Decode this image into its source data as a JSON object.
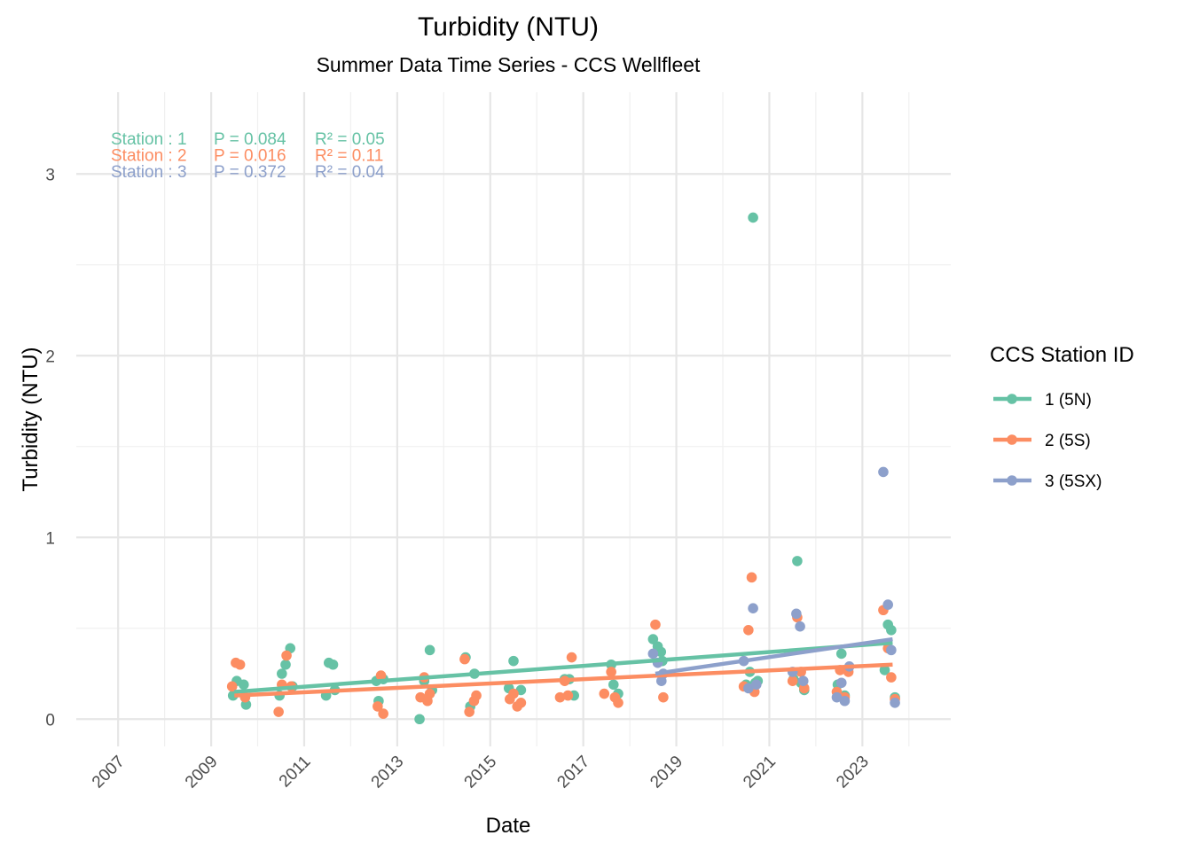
{
  "chart_data": {
    "type": "scatter",
    "title": "Turbidity (NTU)",
    "subtitle": "Summer Data Time Series - CCS Wellfleet",
    "xlabel": "Date",
    "ylabel": "Turbidity (NTU)",
    "xlim": [
      2006.1,
      2024.9
    ],
    "ylim": [
      -0.15,
      3.45
    ],
    "x_ticks": [
      "2007",
      "2009",
      "2011",
      "2013",
      "2015",
      "2017",
      "2019",
      "2021",
      "2023"
    ],
    "y_ticks": [
      "0",
      "1",
      "2",
      "3"
    ],
    "grid": true,
    "legend": {
      "title": "CCS Station ID",
      "position": "right",
      "entries": [
        "1 (5N)",
        "2 (5S)",
        "3 (5SX)"
      ]
    },
    "annotations": [
      {
        "station": "Station : 1",
        "p": "P = 0.084",
        "r2": "R² = 0.05",
        "color": "#66c2a5"
      },
      {
        "station": "Station : 2",
        "p": "P = 0.016",
        "r2": "R² = 0.11",
        "color": "#fc8d62"
      },
      {
        "station": "Station : 3",
        "p": "P = 0.372",
        "r2": "R² = 0.04",
        "color": "#8da0cb"
      }
    ],
    "series": [
      {
        "name": "1 (5N)",
        "color": "#66c2a5",
        "trend": [
          [
            2009.5,
            0.15
          ],
          [
            2023.65,
            0.42
          ]
        ],
        "points": [
          [
            2009.47,
            0.13
          ],
          [
            2009.55,
            0.21
          ],
          [
            2009.7,
            0.19
          ],
          [
            2009.75,
            0.08
          ],
          [
            2010.47,
            0.13
          ],
          [
            2010.52,
            0.25
          ],
          [
            2010.6,
            0.3
          ],
          [
            2010.7,
            0.39
          ],
          [
            2010.75,
            0.18
          ],
          [
            2011.47,
            0.13
          ],
          [
            2011.53,
            0.31
          ],
          [
            2011.62,
            0.3
          ],
          [
            2011.66,
            0.16
          ],
          [
            2012.55,
            0.21
          ],
          [
            2012.6,
            0.1
          ],
          [
            2012.7,
            0.22
          ],
          [
            2013.48,
            0.0
          ],
          [
            2013.58,
            0.21
          ],
          [
            2013.7,
            0.38
          ],
          [
            2013.75,
            0.16
          ],
          [
            2014.47,
            0.34
          ],
          [
            2014.57,
            0.07
          ],
          [
            2014.66,
            0.25
          ],
          [
            2015.4,
            0.17
          ],
          [
            2015.5,
            0.32
          ],
          [
            2015.66,
            0.16
          ],
          [
            2016.6,
            0.22
          ],
          [
            2016.7,
            0.22
          ],
          [
            2016.8,
            0.13
          ],
          [
            2017.6,
            0.3
          ],
          [
            2017.65,
            0.19
          ],
          [
            2017.75,
            0.14
          ],
          [
            2018.5,
            0.44
          ],
          [
            2018.6,
            0.4
          ],
          [
            2018.67,
            0.37
          ],
          [
            2018.7,
            0.32
          ],
          [
            2020.5,
            0.19
          ],
          [
            2020.58,
            0.26
          ],
          [
            2020.65,
            2.76
          ],
          [
            2020.7,
            0.2
          ],
          [
            2020.75,
            0.21
          ],
          [
            2021.52,
            0.22
          ],
          [
            2021.6,
            0.87
          ],
          [
            2021.68,
            0.2
          ],
          [
            2021.75,
            0.16
          ],
          [
            2022.47,
            0.19
          ],
          [
            2022.55,
            0.36
          ],
          [
            2022.62,
            0.13
          ],
          [
            2023.48,
            0.27
          ],
          [
            2023.55,
            0.52
          ],
          [
            2023.62,
            0.49
          ],
          [
            2023.7,
            0.12
          ]
        ]
      },
      {
        "name": "2 (5S)",
        "color": "#fc8d62",
        "trend": [
          [
            2009.5,
            0.13
          ],
          [
            2023.65,
            0.3
          ]
        ],
        "points": [
          [
            2009.45,
            0.18
          ],
          [
            2009.53,
            0.31
          ],
          [
            2009.62,
            0.3
          ],
          [
            2009.73,
            0.12
          ],
          [
            2010.45,
            0.04
          ],
          [
            2010.52,
            0.19
          ],
          [
            2010.62,
            0.35
          ],
          [
            2010.72,
            0.18
          ],
          [
            2012.58,
            0.07
          ],
          [
            2012.65,
            0.24
          ],
          [
            2012.7,
            0.03
          ],
          [
            2013.5,
            0.12
          ],
          [
            2013.58,
            0.23
          ],
          [
            2013.65,
            0.1
          ],
          [
            2013.7,
            0.14
          ],
          [
            2014.45,
            0.33
          ],
          [
            2014.55,
            0.04
          ],
          [
            2014.65,
            0.1
          ],
          [
            2014.7,
            0.13
          ],
          [
            2015.42,
            0.11
          ],
          [
            2015.5,
            0.14
          ],
          [
            2015.58,
            0.07
          ],
          [
            2015.66,
            0.09
          ],
          [
            2016.5,
            0.12
          ],
          [
            2016.6,
            0.21
          ],
          [
            2016.67,
            0.13
          ],
          [
            2016.75,
            0.34
          ],
          [
            2017.45,
            0.14
          ],
          [
            2017.6,
            0.26
          ],
          [
            2017.68,
            0.12
          ],
          [
            2017.75,
            0.09
          ],
          [
            2018.55,
            0.52
          ],
          [
            2018.72,
            0.12
          ],
          [
            2020.45,
            0.18
          ],
          [
            2020.55,
            0.49
          ],
          [
            2020.62,
            0.78
          ],
          [
            2020.68,
            0.15
          ],
          [
            2021.5,
            0.21
          ],
          [
            2021.6,
            0.56
          ],
          [
            2021.68,
            0.26
          ],
          [
            2021.75,
            0.17
          ],
          [
            2022.45,
            0.15
          ],
          [
            2022.52,
            0.27
          ],
          [
            2022.62,
            0.12
          ],
          [
            2022.7,
            0.26
          ],
          [
            2023.45,
            0.6
          ],
          [
            2023.55,
            0.39
          ],
          [
            2023.62,
            0.23
          ],
          [
            2023.7,
            0.11
          ]
        ]
      },
      {
        "name": "3 (5SX)",
        "color": "#8da0cb",
        "trend": [
          [
            2018.55,
            0.25
          ],
          [
            2023.65,
            0.44
          ]
        ],
        "points": [
          [
            2018.5,
            0.36
          ],
          [
            2018.6,
            0.31
          ],
          [
            2018.68,
            0.21
          ],
          [
            2018.72,
            0.25
          ],
          [
            2020.45,
            0.32
          ],
          [
            2020.55,
            0.17
          ],
          [
            2020.65,
            0.61
          ],
          [
            2020.72,
            0.19
          ],
          [
            2021.5,
            0.26
          ],
          [
            2021.58,
            0.58
          ],
          [
            2021.66,
            0.51
          ],
          [
            2021.73,
            0.21
          ],
          [
            2022.45,
            0.12
          ],
          [
            2022.55,
            0.2
          ],
          [
            2022.62,
            0.1
          ],
          [
            2022.72,
            0.29
          ],
          [
            2023.45,
            1.36
          ],
          [
            2023.55,
            0.63
          ],
          [
            2023.62,
            0.38
          ],
          [
            2023.7,
            0.09
          ]
        ]
      }
    ]
  }
}
